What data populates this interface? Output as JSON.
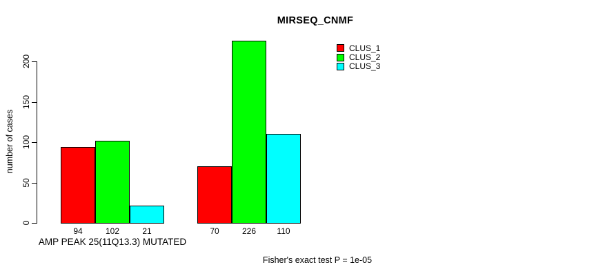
{
  "title": "MIRSEQ_CNMF",
  "footer": "Fisher's exact test P = 1e-05",
  "chart_data": {
    "type": "bar",
    "title": "MIRSEQ_CNMF",
    "ylabel": "number of cases",
    "xlabel": "AMP PEAK 25(11Q13.3) MUTATED",
    "ylim": [
      0,
      200
    ],
    "yticks": [
      0,
      50,
      100,
      150,
      200
    ],
    "grid": false,
    "legend_position": "top-right-inside",
    "categories": [
      "AMP PEAK 25(11Q13.3) MUTATED",
      ""
    ],
    "series": [
      {
        "name": "CLUS_1",
        "color": "#FF0000",
        "values": [
          94,
          70
        ]
      },
      {
        "name": "CLUS_2",
        "color": "#00FF00",
        "values": [
          102,
          226
        ]
      },
      {
        "name": "CLUS_3",
        "color": "#00FFFF",
        "values": [
          21,
          110
        ]
      }
    ]
  }
}
